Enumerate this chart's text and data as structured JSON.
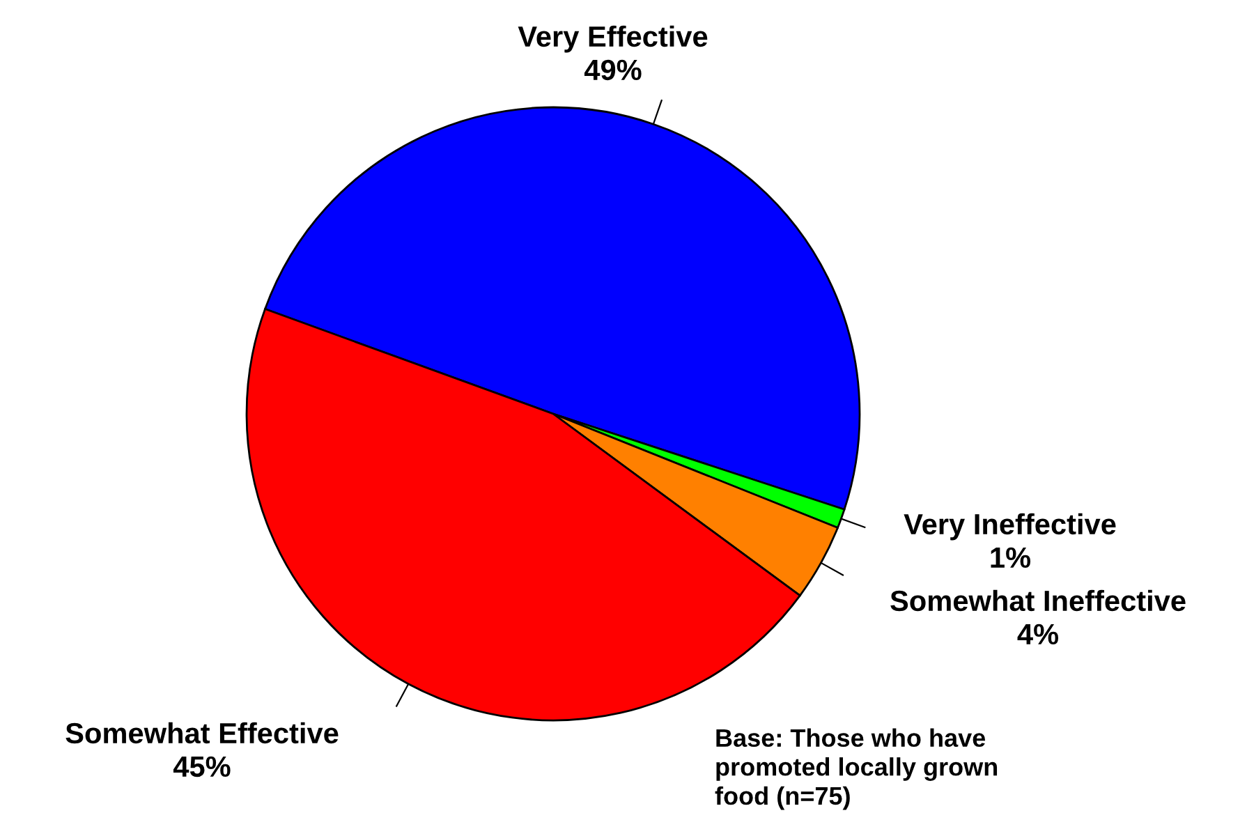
{
  "chart_data": {
    "type": "pie",
    "categories": [
      "Very Effective",
      "Very Ineffective",
      "Somewhat Ineffective",
      "Somewhat Effective"
    ],
    "values": [
      49,
      1,
      4,
      45
    ],
    "value_labels": [
      "49%",
      "1%",
      "4%",
      "45%"
    ],
    "colors": [
      "#0000ff",
      "#00ff00",
      "#ff8000",
      "#ff0000"
    ],
    "annotations": [
      "Base: Those who have\npromoted locally grown\nfood (n=75)"
    ]
  }
}
